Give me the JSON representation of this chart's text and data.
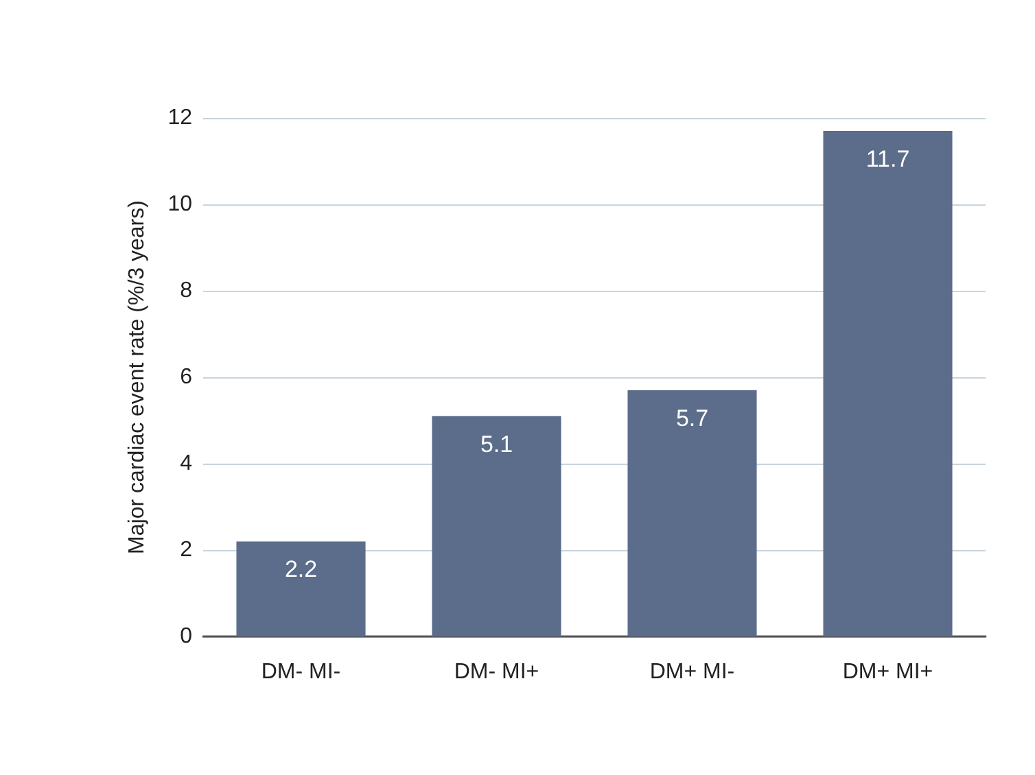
{
  "chart_data": {
    "type": "bar",
    "ylabel": "Major cardiac event rate (%/3 years)",
    "categories": [
      "DM- MI-",
      "DM- MI+",
      "DM+ MI-",
      "DM+ MI+"
    ],
    "values": [
      2.2,
      5.1,
      5.7,
      11.7
    ],
    "color": "#5b6d8a",
    "ylim": [
      0,
      12
    ],
    "yticks": [
      0,
      2,
      4,
      6,
      8,
      10,
      12
    ],
    "grid": "y",
    "data_labels": true
  }
}
